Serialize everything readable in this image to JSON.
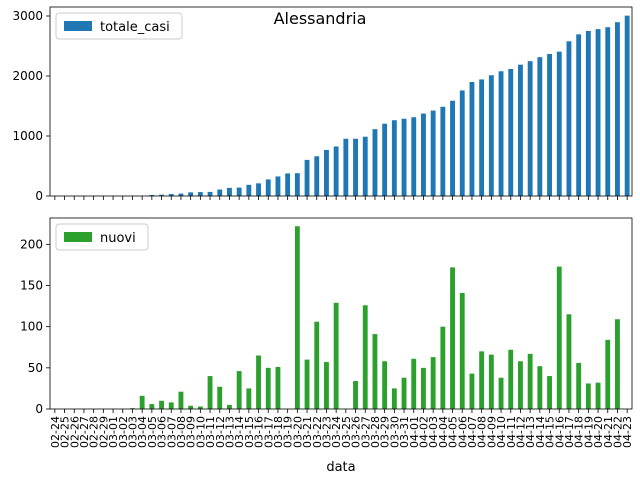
{
  "figure_title": "Alessandria",
  "x_axis_label": "data",
  "colors": {
    "totale_casi": "#1f77b4",
    "nuovi": "#2ca02c"
  },
  "chart_data": [
    {
      "type": "bar",
      "title": "Alessandria",
      "xlabel": "data",
      "ylabel": "",
      "ylim": [
        0,
        3150
      ],
      "yticks": [
        0,
        1000,
        2000,
        3000
      ],
      "legend": "top-left",
      "grid": false,
      "series": [
        {
          "name": "totale_casi",
          "values": [
            0,
            0,
            0,
            0,
            0,
            0,
            0,
            0,
            0,
            0,
            16,
            22,
            32,
            40,
            61,
            65,
            68,
            108,
            135,
            140,
            186,
            211,
            276,
            326,
            376,
            380,
            602,
            662,
            768,
            825,
            954,
            954,
            988,
            1114,
            1205,
            1263,
            1288,
            1313,
            1374,
            1424,
            1487,
            1587,
            1759,
            1900,
            1943,
            2013,
            2079,
            2117,
            2189,
            2247,
            2314,
            2366,
            2406,
            2579,
            2694,
            2750,
            2781,
            2813,
            2897,
            3006
          ]
        }
      ],
      "categories": [
        "02-24",
        "02-25",
        "02-26",
        "02-27",
        "02-28",
        "02-29",
        "03-01",
        "03-02",
        "03-03",
        "03-04",
        "03-05",
        "03-06",
        "03-07",
        "03-08",
        "03-09",
        "03-10",
        "03-11",
        "03-12",
        "03-13",
        "03-14",
        "03-15",
        "03-16",
        "03-17",
        "03-18",
        "03-19",
        "03-20",
        "03-21",
        "03-22",
        "03-23",
        "03-24",
        "03-25",
        "03-26",
        "03-27",
        "03-28",
        "03-29",
        "03-30",
        "03-31",
        "04-01",
        "04-02",
        "04-03",
        "04-04",
        "04-05",
        "04-06",
        "04-07",
        "04-08",
        "04-09",
        "04-10",
        "04-11",
        "04-12",
        "04-13",
        "04-14",
        "04-15",
        "04-16",
        "04-17",
        "04-18",
        "04-19",
        "04-20",
        "04-21",
        "04-22",
        "04-23"
      ]
    },
    {
      "type": "bar",
      "title": "",
      "xlabel": "data",
      "ylabel": "",
      "ylim": [
        0,
        232
      ],
      "yticks": [
        0,
        50,
        100,
        150,
        200
      ],
      "legend": "top-left",
      "grid": false,
      "series": [
        {
          "name": "nuovi",
          "values": [
            0,
            0,
            0,
            0,
            0,
            0,
            0,
            0,
            1,
            16,
            6,
            10,
            8,
            21,
            4,
            3,
            40,
            27,
            5,
            46,
            25,
            65,
            50,
            51,
            0,
            222,
            60,
            106,
            57,
            129,
            0,
            34,
            126,
            91,
            58,
            25,
            38,
            61,
            50,
            63,
            100,
            172,
            141,
            43,
            70,
            66,
            38,
            72,
            58,
            67,
            52,
            40,
            173,
            115,
            56,
            31,
            32,
            84,
            109,
            0
          ]
        }
      ],
      "categories": [
        "02-24",
        "02-25",
        "02-26",
        "02-27",
        "02-28",
        "02-29",
        "03-01",
        "03-02",
        "03-03",
        "03-04",
        "03-05",
        "03-06",
        "03-07",
        "03-08",
        "03-09",
        "03-10",
        "03-11",
        "03-12",
        "03-13",
        "03-14",
        "03-15",
        "03-16",
        "03-17",
        "03-18",
        "03-19",
        "03-20",
        "03-21",
        "03-22",
        "03-23",
        "03-24",
        "03-25",
        "03-26",
        "03-27",
        "03-28",
        "03-29",
        "03-30",
        "03-31",
        "04-01",
        "04-02",
        "04-03",
        "04-04",
        "04-05",
        "04-06",
        "04-07",
        "04-08",
        "04-09",
        "04-10",
        "04-11",
        "04-12",
        "04-13",
        "04-14",
        "04-15",
        "04-16",
        "04-17",
        "04-18",
        "04-19",
        "04-20",
        "04-21",
        "04-22",
        "04-23"
      ]
    }
  ]
}
